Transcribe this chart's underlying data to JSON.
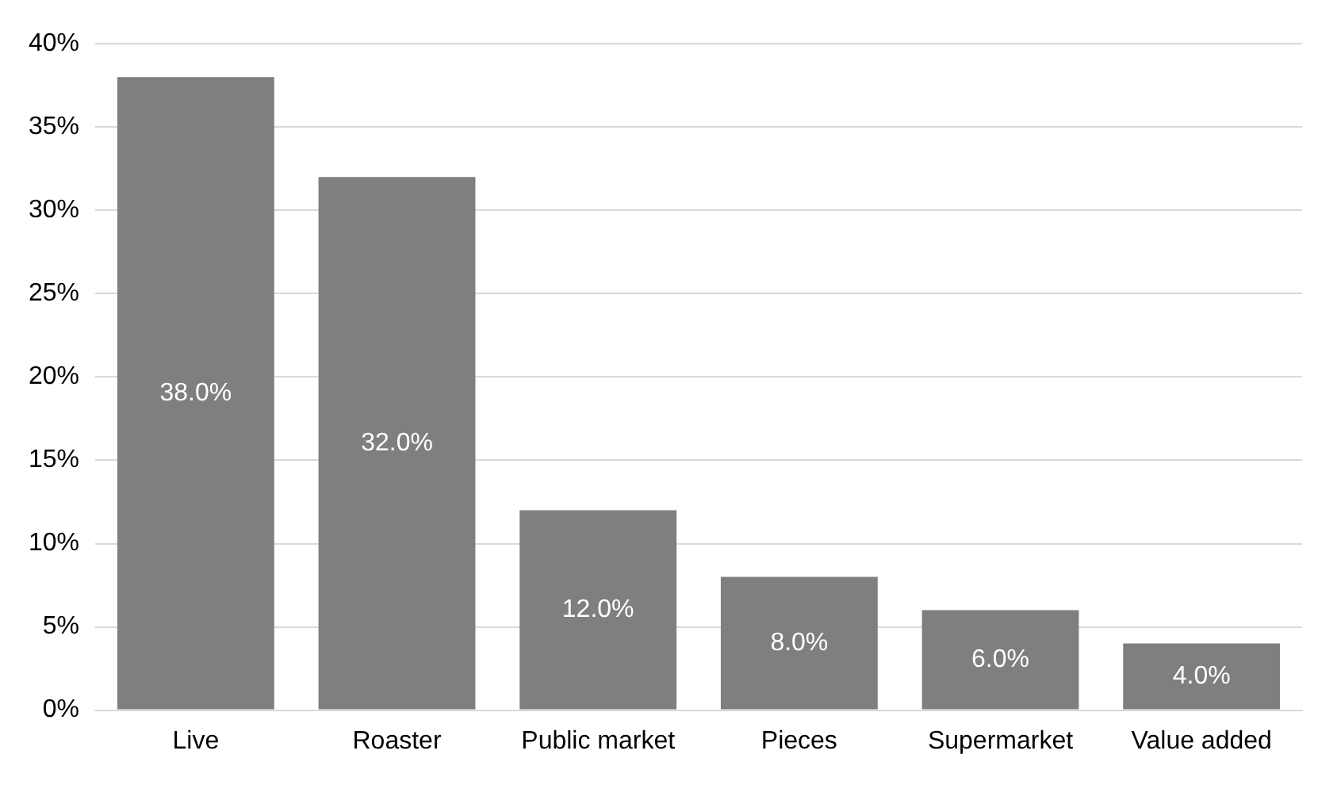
{
  "chart_data": {
    "type": "bar",
    "categories": [
      "Live",
      "Roaster",
      "Public market",
      "Pieces",
      "Supermarket",
      "Value added"
    ],
    "values": [
      38,
      32,
      12,
      8,
      6,
      4
    ],
    "color": "#7f7f7f",
    "value_labels": [
      "38.0%",
      "32.0%",
      "12.0%",
      "8.0%",
      "6.0%",
      "4.0%"
    ],
    "ylim": [
      0,
      40
    ],
    "yticks": [
      {
        "value": 0,
        "label": "0%"
      },
      {
        "value": 5,
        "label": "5%"
      },
      {
        "value": 10,
        "label": "10%"
      },
      {
        "value": 15,
        "label": "15%"
      },
      {
        "value": 20,
        "label": "20%"
      },
      {
        "value": 25,
        "label": "25%"
      },
      {
        "value": 30,
        "label": "30%"
      },
      {
        "value": 35,
        "label": "35%"
      },
      {
        "value": 40,
        "label": "40%"
      }
    ],
    "grid": "y"
  }
}
